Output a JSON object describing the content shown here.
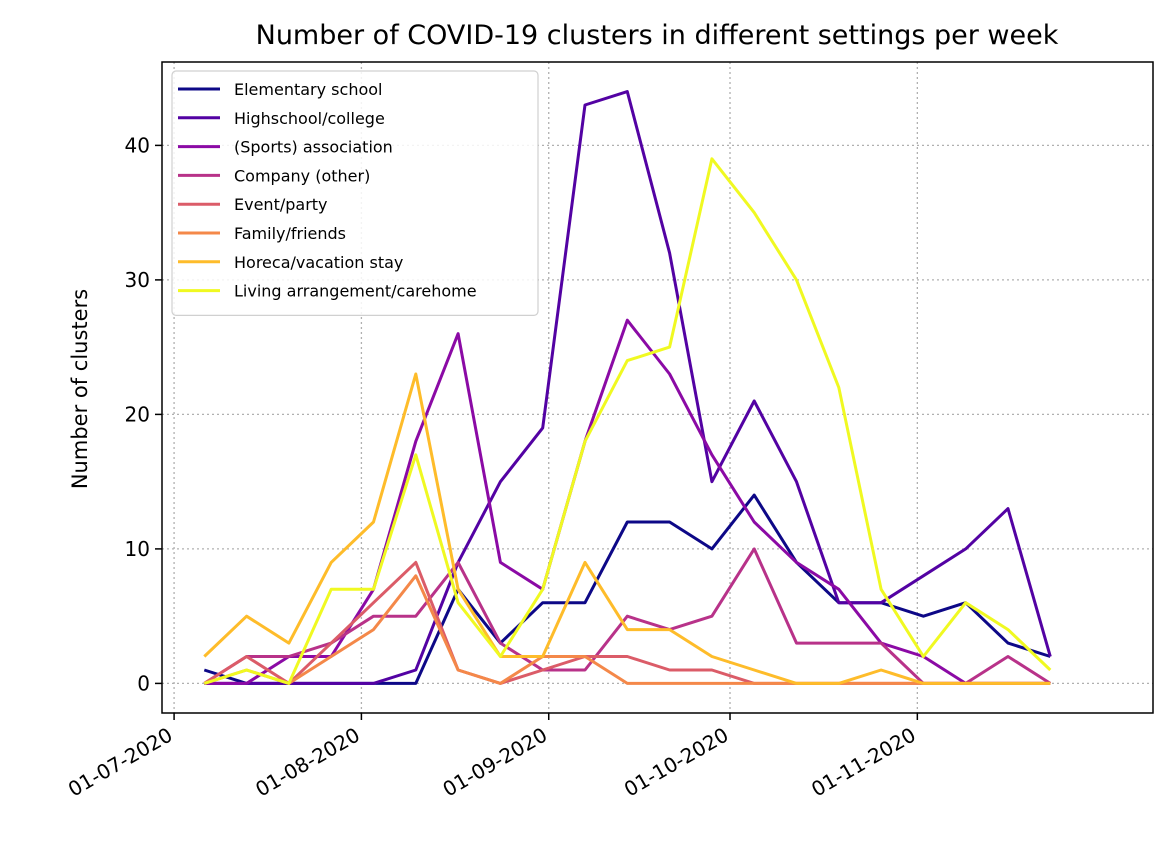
{
  "chart_data": {
    "type": "line",
    "title": "Number of COVID-19 clusters in different settings per week",
    "xlabel": "",
    "ylabel": "Number of clusters",
    "x_tick_labels": [
      "01-07-2020",
      "01-08-2020",
      "01-09-2020",
      "01-10-2020",
      "01-11-2020"
    ],
    "x_tick_dates": [
      "2020-07-01",
      "2020-08-01",
      "2020-09-01",
      "2020-10-01",
      "2020-11-01"
    ],
    "xlim": [
      "2020-06-29",
      "2020-12-10"
    ],
    "y_ticks": [
      0,
      10,
      20,
      30,
      40
    ],
    "ylim": [
      -2.2,
      46.2
    ],
    "grid": true,
    "legend_position": "top-left",
    "x": [
      "2020-07-06",
      "2020-07-13",
      "2020-07-20",
      "2020-07-27",
      "2020-08-03",
      "2020-08-10",
      "2020-08-17",
      "2020-08-24",
      "2020-08-31",
      "2020-09-07",
      "2020-09-14",
      "2020-09-21",
      "2020-09-28",
      "2020-10-05",
      "2020-10-12",
      "2020-10-19",
      "2020-10-26",
      "2020-11-02",
      "2020-11-09",
      "2020-11-16",
      "2020-11-23"
    ],
    "series": [
      {
        "name": "Elementary school",
        "color": "#0d0887",
        "values": [
          1,
          0,
          0,
          0,
          0,
          0,
          7,
          3,
          6,
          6,
          12,
          12,
          10,
          14,
          9,
          6,
          6,
          5,
          6,
          3,
          2
        ]
      },
      {
        "name": "Highschool/college",
        "color": "#5302a3",
        "values": [
          0,
          0,
          0,
          0,
          0,
          1,
          9,
          15,
          19,
          43,
          44,
          32,
          15,
          21,
          15,
          6,
          6,
          8,
          10,
          13,
          2
        ]
      },
      {
        "name": "(Sports) association",
        "color": "#8b0aa5",
        "values": [
          0,
          0,
          2,
          2,
          7,
          18,
          26,
          9,
          7,
          18,
          27,
          23,
          17,
          12,
          9,
          7,
          3,
          2,
          0,
          0,
          0
        ]
      },
      {
        "name": "Company (other)",
        "color": "#b83289",
        "values": [
          0,
          2,
          2,
          3,
          5,
          5,
          9,
          3,
          1,
          1,
          5,
          4,
          5,
          10,
          3,
          3,
          3,
          0,
          0,
          2,
          0
        ]
      },
      {
        "name": "Event/party",
        "color": "#db5c68",
        "values": [
          0,
          2,
          0,
          3,
          6,
          9,
          1,
          0,
          1,
          2,
          2,
          1,
          1,
          0,
          0,
          0,
          0,
          0,
          0,
          0,
          0
        ]
      },
      {
        "name": "Family/friends",
        "color": "#f48849",
        "values": [
          0,
          1,
          0,
          2,
          4,
          8,
          1,
          0,
          2,
          2,
          0,
          0,
          0,
          0,
          0,
          0,
          0,
          0,
          0,
          0,
          0
        ]
      },
      {
        "name": "Horeca/vacation stay",
        "color": "#febc2a",
        "values": [
          2,
          5,
          3,
          9,
          12,
          23,
          7,
          2,
          2,
          9,
          4,
          4,
          2,
          1,
          0,
          0,
          1,
          0,
          0,
          0,
          0
        ]
      },
      {
        "name": "Living arrangement/carehome",
        "color": "#f0f921",
        "values": [
          0,
          1,
          0,
          7,
          7,
          17,
          6,
          2,
          7,
          18,
          24,
          25,
          39,
          35,
          30,
          22,
          7,
          2,
          6,
          4,
          1
        ]
      }
    ]
  }
}
